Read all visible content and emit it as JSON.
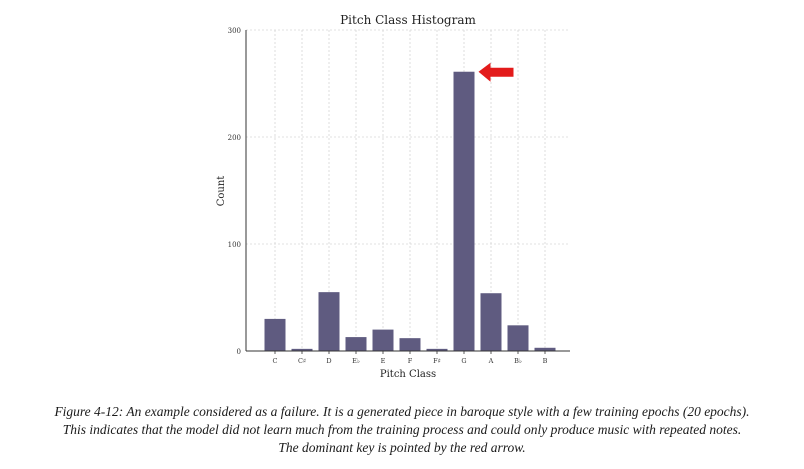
{
  "chart_data": {
    "type": "bar",
    "title": "Pitch Class Histogram",
    "xlabel": "Pitch Class",
    "ylabel": "Count",
    "categories": [
      "C",
      "C♯",
      "D",
      "E♭",
      "E",
      "F",
      "F♯",
      "G",
      "A",
      "B♭",
      "B"
    ],
    "values": [
      30,
      2,
      55,
      13,
      20,
      12,
      2,
      261,
      54,
      24,
      3
    ],
    "ylim": [
      0,
      300
    ],
    "yticks": [
      0,
      100,
      200,
      300
    ],
    "grid": true,
    "annotation": {
      "type": "arrow",
      "target_category": "G",
      "color": "#e31b1b"
    },
    "bar_color": "#5f5b80"
  },
  "caption": {
    "lines": [
      "Figure 4-12: An example considered as a failure. It is a generated piece in baroque style with a few training epochs (20 epochs).",
      "This indicates that the model did not learn much from the training process and could only produce music with repeated notes.",
      "The dominant key is pointed by the red arrow."
    ]
  }
}
